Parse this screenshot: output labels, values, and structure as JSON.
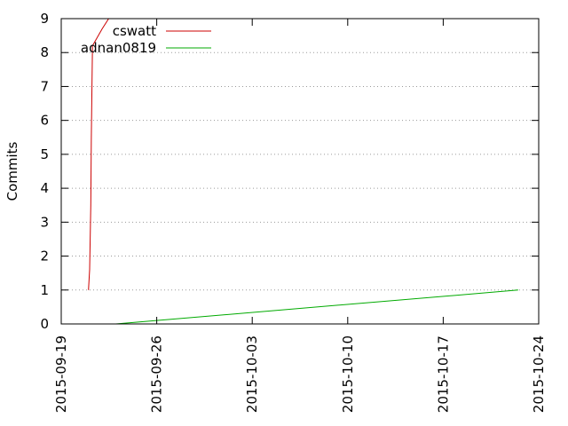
{
  "chart_data": {
    "type": "line",
    "title": "",
    "xlabel": "",
    "ylabel": "Commits",
    "ylim": [
      0,
      9
    ],
    "yticks": [
      0,
      1,
      2,
      3,
      4,
      5,
      6,
      7,
      8,
      9
    ],
    "xlim": [
      "2015-09-19",
      "2015-10-24"
    ],
    "xticks": [
      "2015-09-19",
      "2015-09-26",
      "2015-10-03",
      "2015-10-10",
      "2015-10-17",
      "2015-10-24"
    ],
    "grid": "horizontal dotted",
    "legend_position": "top-left",
    "series": [
      {
        "name": "cswatt",
        "color": "#cc0000",
        "points": [
          [
            "2015-09-21 00:00",
            1
          ],
          [
            "2015-09-21 02:00",
            1.6
          ],
          [
            "2015-09-21 04:00",
            3.5
          ],
          [
            "2015-09-21 05:00",
            5.5
          ],
          [
            "2015-09-21 07:00",
            8.2
          ],
          [
            "2015-09-22 00:00",
            8.7
          ],
          [
            "2015-09-22 19:00",
            9.2
          ]
        ]
      },
      {
        "name": "adnan0819",
        "color": "#00aa00",
        "points": [
          [
            "2015-09-23 00:00",
            0
          ],
          [
            "2015-10-22 12:00",
            1
          ]
        ]
      }
    ]
  }
}
